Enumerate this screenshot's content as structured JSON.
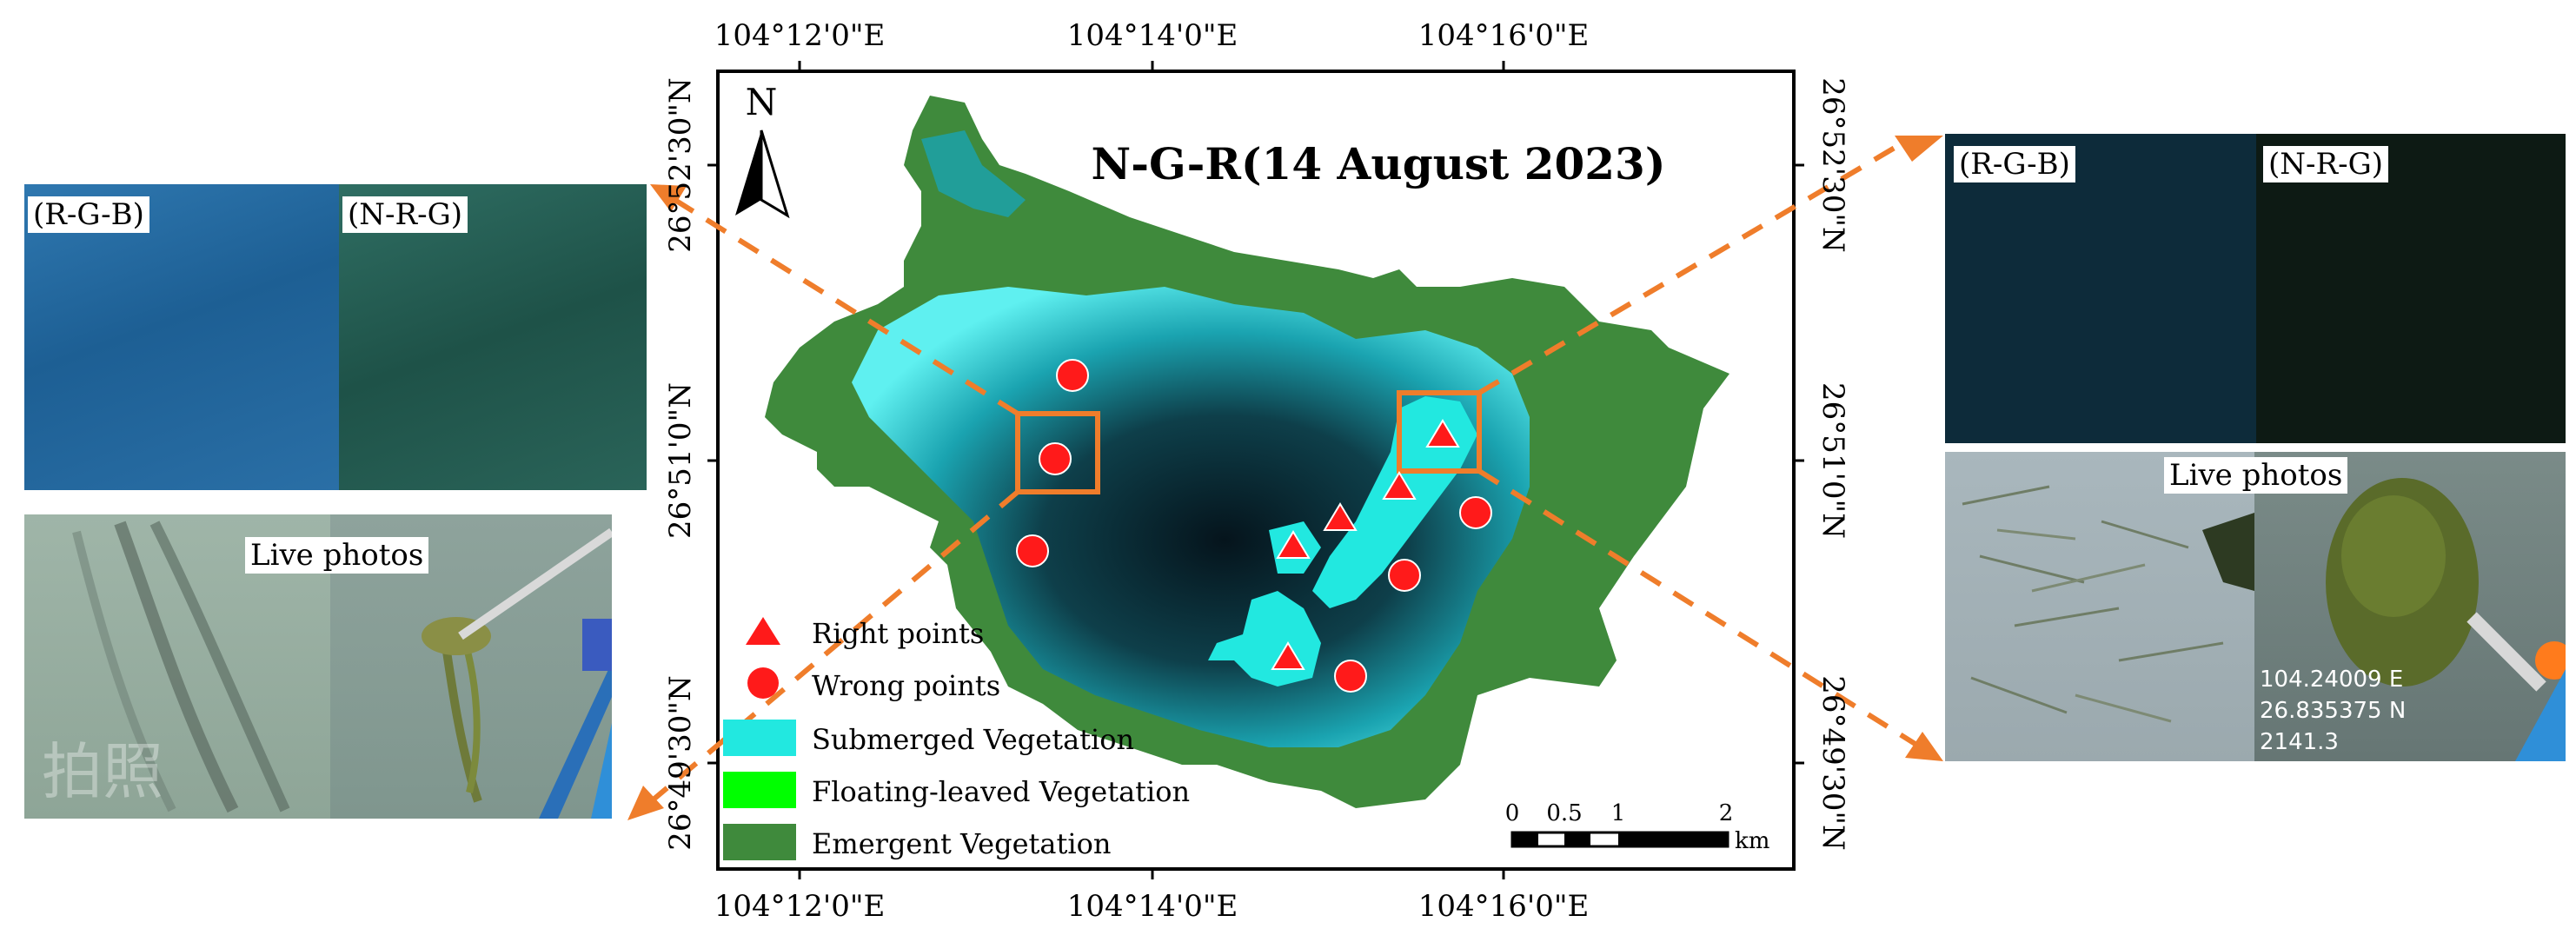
{
  "map": {
    "title": "N-G-R(14 August 2023)",
    "north_label": "N",
    "top_ticks": [
      "104°12'0\"E",
      "104°14'0\"E",
      "104°16'0\"E"
    ],
    "bottom_ticks": [
      "104°12'0\"E",
      "104°14'0\"E",
      "104°16'0\"E"
    ],
    "left_ticks": [
      "26°52'30\"N",
      "26°51'0\"N",
      "26°49'30\"N"
    ],
    "right_ticks": [
      "26°52'30\"N",
      "26°51'0\"N",
      "26°49'30\"N"
    ],
    "scale": {
      "labels": [
        "0",
        "0.5",
        "1",
        "2"
      ],
      "unit": "km"
    },
    "legend": [
      {
        "label": "Right points",
        "symbol": "triangle",
        "color": "#ff0000"
      },
      {
        "label": "Wrong points",
        "symbol": "circle",
        "color": "#ff0000"
      },
      {
        "label": "Submerged Vegetation",
        "symbol": "rect",
        "color": "#22e8e0"
      },
      {
        "label": "Floating-leaved Vegetation",
        "symbol": "rect",
        "color": "#00ff00"
      },
      {
        "label": "Emergent Vegetation",
        "symbol": "rect",
        "color": "#3f8a3c"
      }
    ],
    "colors": {
      "callout": "#ef7d2b",
      "water": "#0a2f3a",
      "accent": "#ff1a1a"
    }
  },
  "left_panel": {
    "label_rgb": "(R-G-B)",
    "label_nrg": "(N-R-G)",
    "live_label": "Live photos",
    "watermark": "拍照"
  },
  "right_panel": {
    "label_rgb": "(R-G-B)",
    "label_nrg": "(N-R-G)",
    "live_label": "Live photos",
    "gps_lines": [
      "104.24009 E",
      "26.835375 N",
      "2141.3"
    ]
  }
}
